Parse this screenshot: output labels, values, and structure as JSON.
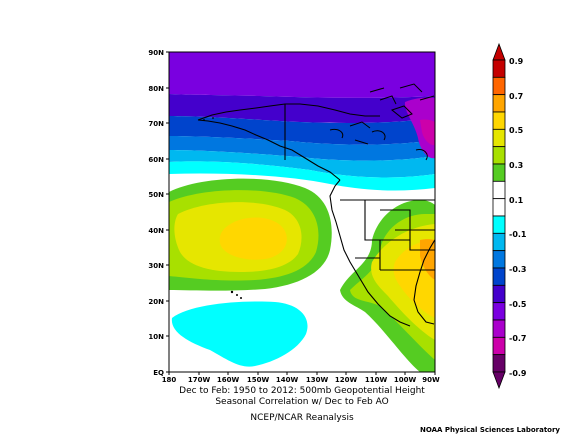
{
  "map": {
    "lat_labels": [
      "90N",
      "80N",
      "70N",
      "60N",
      "50N",
      "40N",
      "30N",
      "20N",
      "10N",
      "EQ"
    ],
    "lon_labels": [
      "180",
      "170W",
      "160W",
      "150W",
      "140W",
      "130W",
      "120W",
      "110W",
      "100W",
      "90W"
    ]
  },
  "colorbar": {
    "labels": [
      "0.9",
      "0.7",
      "0.5",
      "0.3",
      "0.1",
      "-0.1",
      "-0.3",
      "-0.5",
      "-0.7",
      "-0.9"
    ],
    "colors": [
      "#c40000",
      "#ff6600",
      "#ffa500",
      "#ffd700",
      "#e6e600",
      "#a8e000",
      "#55cc22",
      "#ffffff",
      "#ffffff",
      "#00ffff",
      "#00b8f0",
      "#0077e0",
      "#0044cc",
      "#4400cc",
      "#7a00e0",
      "#aa00cc",
      "#cc00aa",
      "#660066"
    ]
  },
  "caption": {
    "line1": "Dec to Feb: 1950 to 2012: 500mb Geopotential Height",
    "line2": "Seasonal Correlation w/ Dec to Feb AO",
    "line3": "NCEP/NCAR Reanalysis"
  },
  "credit": "NOAA Physical Sciences Laboratory"
}
